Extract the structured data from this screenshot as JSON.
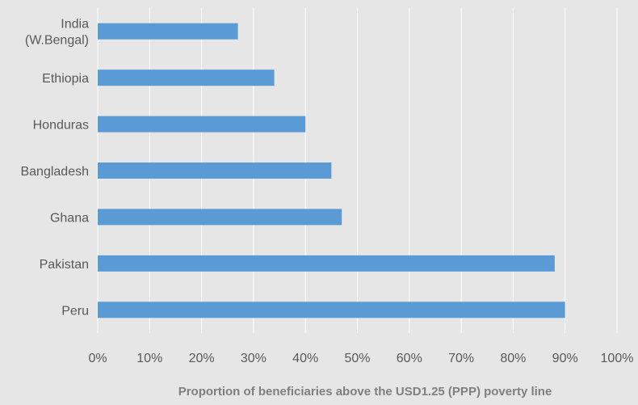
{
  "chart_data": {
    "type": "bar",
    "orientation": "horizontal",
    "title": "",
    "xlabel": "Proportion of beneficiaries above the USD1.25 (PPP) poverty line",
    "ylabel": "",
    "categories": [
      [
        "India",
        "(W.Bengal)"
      ],
      [
        "Ethiopia"
      ],
      [
        "Honduras"
      ],
      [
        "Bangladesh"
      ],
      [
        "Ghana"
      ],
      [
        "Pakistan"
      ],
      [
        "Peru"
      ]
    ],
    "values": [
      0.27,
      0.34,
      0.4,
      0.45,
      0.47,
      0.88,
      0.9
    ],
    "xlim": [
      0,
      1
    ],
    "x_ticks": [
      0,
      0.1,
      0.2,
      0.3,
      0.4,
      0.5,
      0.6,
      0.7,
      0.8,
      0.9,
      1.0
    ],
    "x_tick_labels": [
      "0%",
      "10%",
      "20%",
      "30%",
      "40%",
      "50%",
      "60%",
      "70%",
      "80%",
      "90%",
      "100%"
    ],
    "grid": "vertical",
    "legend": "none",
    "bar_color": "#5b9bd5",
    "background": "#e7e6e6",
    "grid_color": "#ffffff",
    "text_color": "#595959",
    "xlabel_color": "#7f7f7f"
  }
}
